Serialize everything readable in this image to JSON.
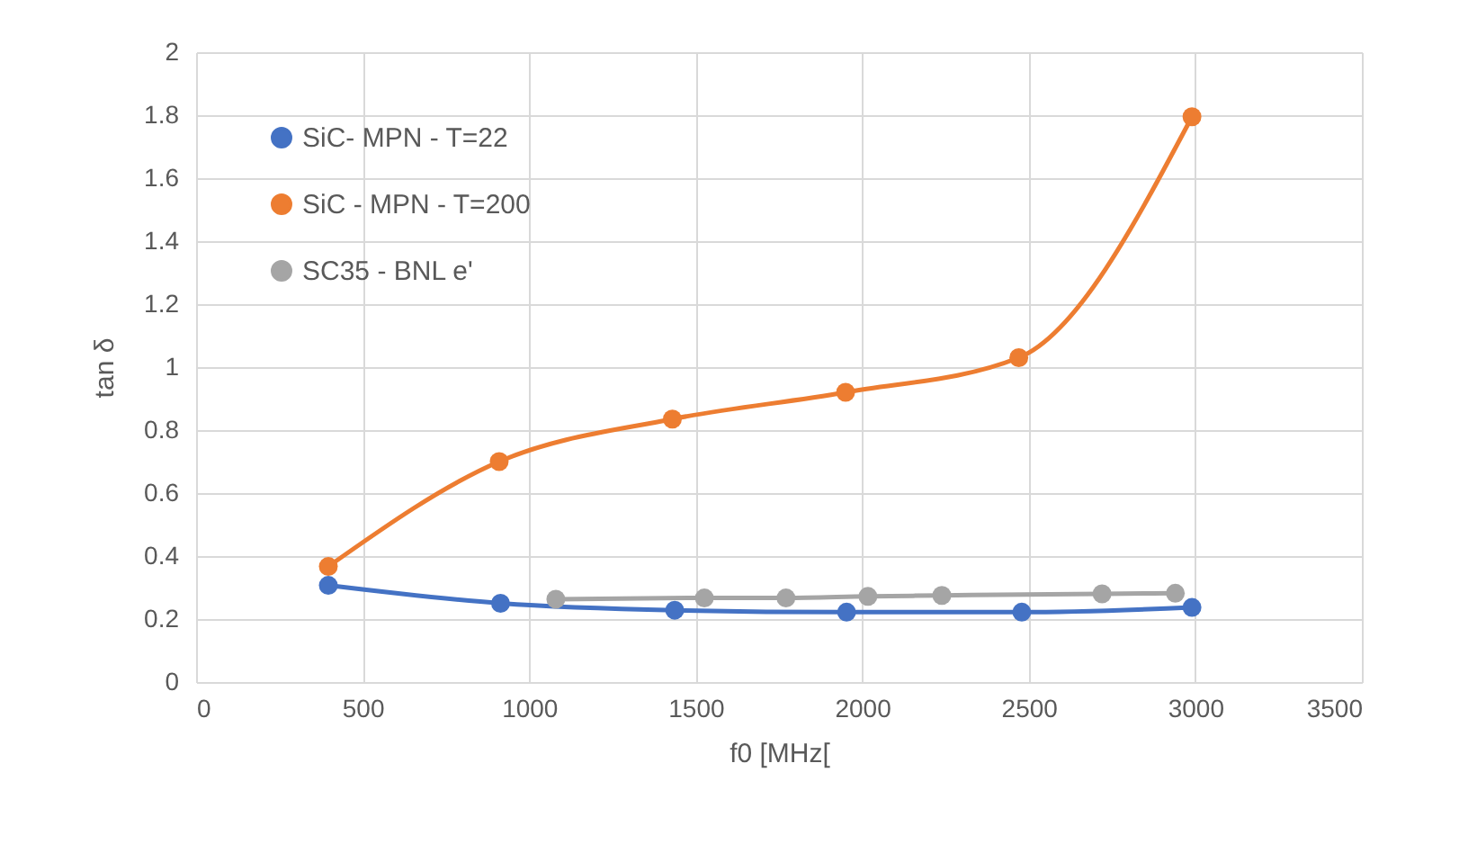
{
  "chart_data": {
    "type": "line",
    "xlabel": "f0 [MHz[",
    "ylabel": "tan δ",
    "xlim": [
      0,
      3500
    ],
    "xticks": [
      0,
      500,
      1000,
      1500,
      2000,
      2500,
      3000,
      3500
    ],
    "ylim": [
      0,
      2
    ],
    "yticks": [
      0,
      0.2,
      0.4,
      0.6,
      0.8,
      1,
      1.2,
      1.4,
      1.6,
      1.8,
      2
    ],
    "grid": true,
    "legend": "top left",
    "marker": "circle",
    "series": [
      {
        "name": "SiC- MPN - T=22",
        "color": "#4472c4",
        "x": [
          397,
          914,
          1437,
          1953,
          2479,
          2990
        ],
        "values": [
          0.307,
          0.25,
          0.228,
          0.222,
          0.222,
          0.237
        ]
      },
      {
        "name": "SiC - MPN - T=200",
        "color": "#ed7d31",
        "x": [
          397,
          910,
          1430,
          1950,
          2470,
          2990
        ],
        "values": [
          0.367,
          0.7,
          0.835,
          0.92,
          1.03,
          1.795
        ]
      },
      {
        "name": "SC35 - BNL e'",
        "color": "#a5a5a5",
        "x": [
          1080,
          1526,
          1771,
          2017,
          2239,
          2720,
          2940
        ],
        "values": [
          0.263,
          0.267,
          0.267,
          0.272,
          0.275,
          0.28,
          0.282
        ]
      }
    ]
  }
}
